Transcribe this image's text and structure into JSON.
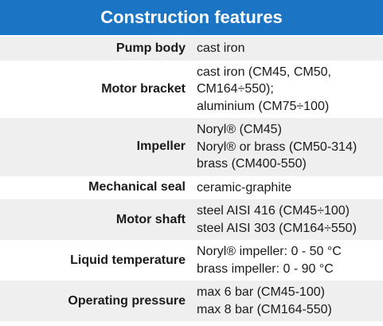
{
  "header": {
    "title": "Construction features"
  },
  "table": {
    "rows": [
      {
        "label": "Pump body",
        "lines": [
          "cast iron"
        ]
      },
      {
        "label": "Motor bracket",
        "lines": [
          "cast iron (CM45, CM50,",
          "CM164÷550);",
          "aluminium (CM75÷100)"
        ]
      },
      {
        "label": "Impeller",
        "lines": [
          "Noryl® (CM45)",
          "Noryl® or brass (CM50-314)",
          "brass (CM400-550)"
        ]
      },
      {
        "label": "Mechanical seal",
        "lines": [
          "ceramic-graphite"
        ]
      },
      {
        "label": "Motor shaft",
        "lines": [
          "steel AISI 416 (CM45÷100)",
          "steel AISI 303 (CM164÷550)"
        ]
      },
      {
        "label": "Liquid temperature",
        "lines": [
          "Noryl® impeller: 0 - 50 °C",
          "brass impeller: 0 - 90 °C"
        ]
      },
      {
        "label": "Operating pressure",
        "lines": [
          "max 6 bar (CM45-100)",
          "max 8 bar (CM164-550)"
        ]
      }
    ]
  }
}
